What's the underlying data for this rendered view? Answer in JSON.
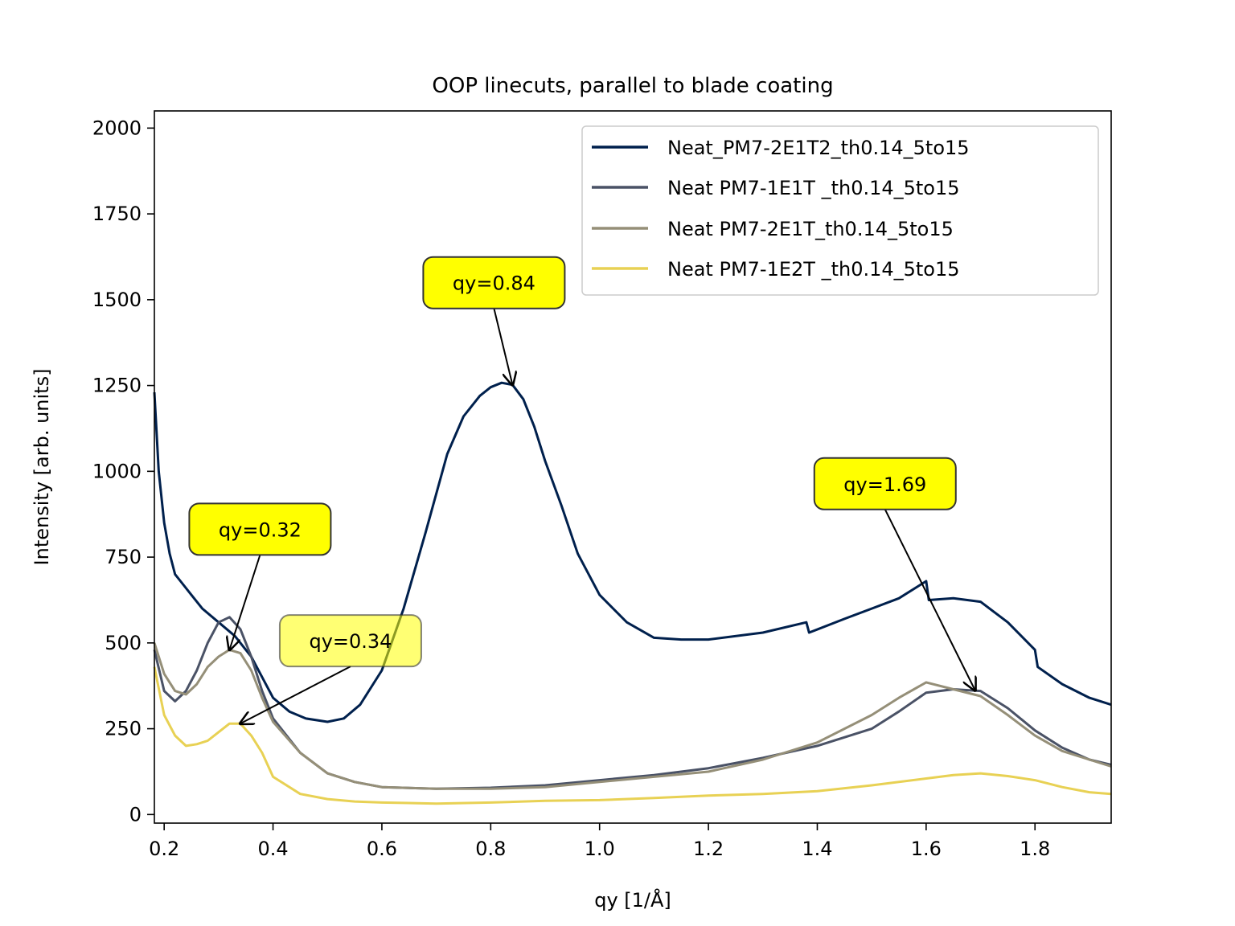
{
  "chart_data": {
    "type": "line",
    "title": "OOP linecuts, parallel to blade coating",
    "xlabel": "qy [1/Å]",
    "ylabel": "Intensity [arb. units]",
    "xlim": [
      0.182,
      1.94
    ],
    "ylim": [
      -25,
      2050
    ],
    "xticks": [
      0.2,
      0.4,
      0.6,
      0.8,
      1.0,
      1.2,
      1.4,
      1.6,
      1.8
    ],
    "xtick_labels": [
      "0.2",
      "0.4",
      "0.6",
      "0.8",
      "1.0",
      "1.2",
      "1.4",
      "1.6",
      "1.8"
    ],
    "yticks": [
      0,
      250,
      500,
      750,
      1000,
      1250,
      1500,
      1750,
      2000
    ],
    "ytick_labels": [
      "0",
      "250",
      "500",
      "750",
      "1000",
      "1250",
      "1500",
      "1750",
      "2000"
    ],
    "grid": false,
    "legend_position": "top-right",
    "series": [
      {
        "name": "Neat_PM7-2E1T2_th0.14_5to15",
        "color": "#00204d",
        "x": [
          0.182,
          0.19,
          0.2,
          0.21,
          0.22,
          0.23,
          0.25,
          0.27,
          0.3,
          0.33,
          0.36,
          0.4,
          0.43,
          0.46,
          0.5,
          0.53,
          0.56,
          0.6,
          0.64,
          0.68,
          0.72,
          0.75,
          0.78,
          0.8,
          0.82,
          0.84,
          0.86,
          0.88,
          0.9,
          0.93,
          0.96,
          1.0,
          1.05,
          1.1,
          1.15,
          1.2,
          1.3,
          1.38,
          1.385,
          1.45,
          1.5,
          1.55,
          1.6,
          1.605,
          1.65,
          1.7,
          1.75,
          1.8,
          1.805,
          1.85,
          1.9,
          1.94
        ],
        "y": [
          1230,
          1000,
          850,
          760,
          700,
          680,
          640,
          600,
          560,
          520,
          460,
          340,
          300,
          280,
          270,
          280,
          320,
          420,
          600,
          820,
          1050,
          1160,
          1220,
          1245,
          1258,
          1252,
          1210,
          1130,
          1030,
          900,
          760,
          640,
          560,
          515,
          510,
          510,
          530,
          560,
          530,
          570,
          600,
          630,
          680,
          625,
          630,
          620,
          560,
          480,
          430,
          380,
          340,
          320
        ]
      },
      {
        "name": "Neat PM7-1E1T _th0.14_5to15",
        "color": "#4a5266",
        "x": [
          0.182,
          0.2,
          0.22,
          0.24,
          0.26,
          0.28,
          0.3,
          0.32,
          0.34,
          0.36,
          0.38,
          0.4,
          0.45,
          0.5,
          0.55,
          0.6,
          0.7,
          0.8,
          0.9,
          1.0,
          1.1,
          1.2,
          1.3,
          1.4,
          1.5,
          1.55,
          1.6,
          1.65,
          1.7,
          1.75,
          1.8,
          1.85,
          1.9,
          1.94
        ],
        "y": [
          480,
          360,
          330,
          360,
          420,
          500,
          560,
          575,
          540,
          460,
          360,
          280,
          180,
          120,
          95,
          80,
          75,
          78,
          85,
          100,
          115,
          135,
          165,
          200,
          250,
          300,
          355,
          365,
          360,
          310,
          245,
          195,
          160,
          145
        ]
      },
      {
        "name": "Neat PM7-2E1T_th0.14_5to15",
        "color": "#958f78",
        "x": [
          0.182,
          0.2,
          0.22,
          0.24,
          0.26,
          0.28,
          0.3,
          0.32,
          0.34,
          0.36,
          0.38,
          0.4,
          0.45,
          0.5,
          0.55,
          0.6,
          0.7,
          0.8,
          0.9,
          1.0,
          1.1,
          1.2,
          1.3,
          1.4,
          1.5,
          1.55,
          1.6,
          1.65,
          1.7,
          1.75,
          1.8,
          1.85,
          1.9,
          1.94
        ],
        "y": [
          500,
          410,
          360,
          350,
          380,
          430,
          460,
          480,
          470,
          420,
          340,
          270,
          180,
          120,
          95,
          80,
          75,
          75,
          80,
          95,
          110,
          125,
          160,
          210,
          290,
          340,
          385,
          365,
          345,
          290,
          230,
          185,
          160,
          140
        ]
      },
      {
        "name": "Neat PM7-1E2T _th0.14_5to15",
        "color": "#e8d154",
        "x": [
          0.182,
          0.2,
          0.22,
          0.24,
          0.26,
          0.28,
          0.3,
          0.32,
          0.34,
          0.36,
          0.38,
          0.4,
          0.45,
          0.5,
          0.55,
          0.6,
          0.7,
          0.8,
          0.9,
          1.0,
          1.1,
          1.2,
          1.3,
          1.4,
          1.5,
          1.6,
          1.65,
          1.7,
          1.75,
          1.8,
          1.85,
          1.9,
          1.94
        ],
        "y": [
          430,
          290,
          230,
          200,
          205,
          215,
          240,
          265,
          265,
          230,
          180,
          110,
          60,
          45,
          38,
          35,
          32,
          35,
          40,
          42,
          48,
          55,
          60,
          68,
          85,
          105,
          115,
          120,
          112,
          100,
          80,
          65,
          60
        ]
      }
    ],
    "annotations": [
      {
        "text": "qy=0.32",
        "x": 0.32,
        "y": 480,
        "alpha": 1.0
      },
      {
        "text": "qy=0.34",
        "x": 0.34,
        "y": 265,
        "alpha": 0.55
      },
      {
        "text": "qy=0.84",
        "x": 0.84,
        "y": 1252,
        "alpha": 1.0
      },
      {
        "text": "qy=1.69",
        "x": 1.69,
        "y": 362,
        "alpha": 1.0
      }
    ],
    "annotation_color": "#ffff00"
  }
}
